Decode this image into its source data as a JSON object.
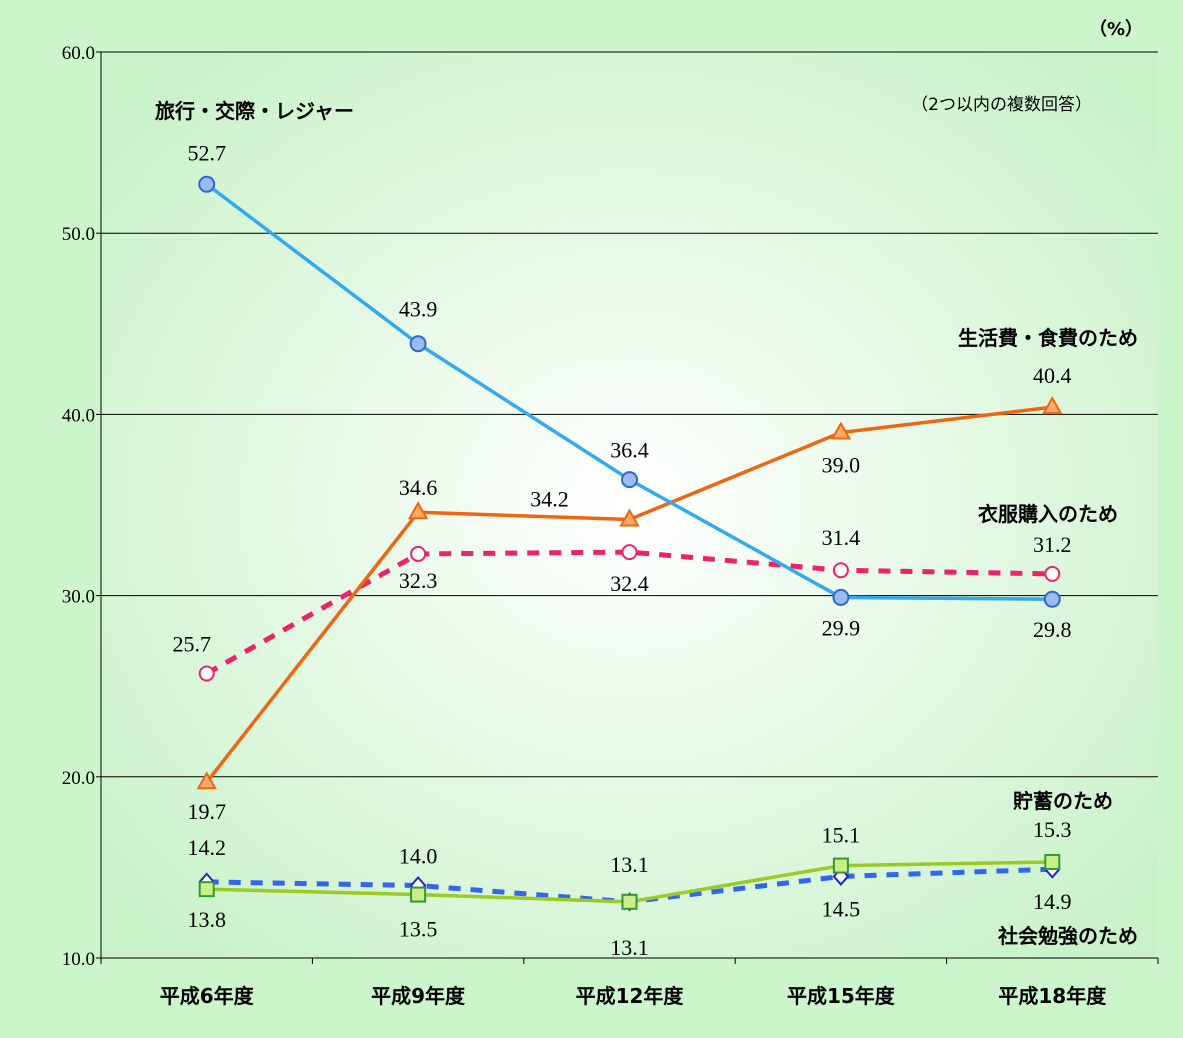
{
  "chart_data": {
    "type": "line",
    "unit": "（%）",
    "note": "（2つ以内の複数回答）",
    "categories": [
      "平成6年度",
      "平成9年度",
      "平成12年度",
      "平成15年度",
      "平成18年度"
    ],
    "ylim": [
      10,
      60
    ],
    "yticks": [
      "10.0",
      "20.0",
      "30.0",
      "40.0",
      "50.0",
      "60.0"
    ],
    "grid": true,
    "series": [
      {
        "name": "旅行・交際・レジャー",
        "values": [
          52.7,
          43.9,
          36.4,
          29.9,
          29.8
        ],
        "labels": [
          "52.7",
          "43.9",
          "36.4",
          "29.9",
          "29.8"
        ],
        "color": "#33AAEE",
        "marker": "circle",
        "fill": "#99BBEE",
        "dashed": false
      },
      {
        "name": "生活費・食費のため",
        "values": [
          19.7,
          34.6,
          34.2,
          39.0,
          40.4
        ],
        "labels": [
          "19.7",
          "34.6",
          "34.2",
          "39.0",
          "40.4"
        ],
        "color": "#EE6611",
        "marker": "triangle",
        "fill": "#FFAA66",
        "dashed": false
      },
      {
        "name": "衣服購入のため",
        "values": [
          25.7,
          32.3,
          32.4,
          31.4,
          31.2
        ],
        "labels": [
          "25.7",
          "32.3",
          "32.4",
          "31.4",
          "31.2"
        ],
        "color": "#EE2266",
        "marker": "circle-open",
        "fill": "#FFFFFF",
        "dashed": true
      },
      {
        "name": "貯蓄のため",
        "values": [
          13.8,
          13.5,
          13.1,
          15.1,
          15.3
        ],
        "labels": [
          "13.8",
          "13.5",
          "13.1",
          "15.1",
          "15.3"
        ],
        "color": "#99CC22",
        "marker": "square",
        "fill": "#CCEE88",
        "dashed": false
      },
      {
        "name": "社会勉強のため",
        "values": [
          14.2,
          14.0,
          13.1,
          14.5,
          14.9
        ],
        "labels": [
          "14.2",
          "14.0",
          "13.1",
          "14.5",
          "14.9"
        ],
        "color": "#3366EE",
        "marker": "diamond",
        "fill": "#FFFFFF",
        "dashed": true
      }
    ]
  }
}
